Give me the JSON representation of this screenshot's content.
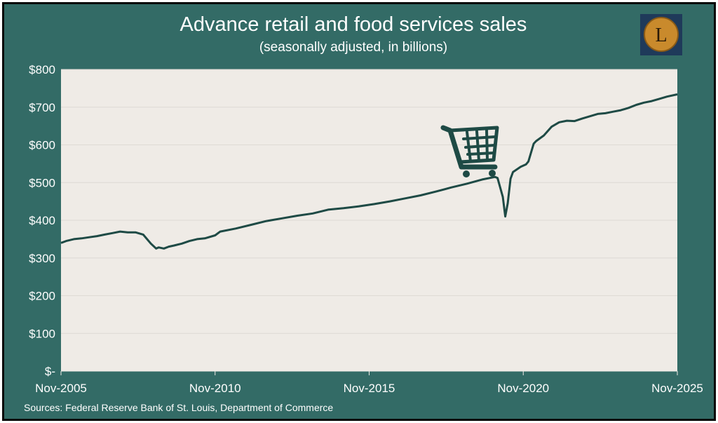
{
  "colors": {
    "background": "#336b66",
    "plot_background": "#efebe6",
    "line": "#1e4a45",
    "text": "#ffffff",
    "logo_circle": "#c98a2c",
    "logo_box": "#1f3a5a"
  },
  "logo": {
    "letter": "L",
    "icon": "lettered-coin-logo"
  },
  "source": "Sources: Federal Reserve Bank of St. Louis, Department of Commerce",
  "chart_data": {
    "type": "line",
    "title": "Advance retail and food services sales",
    "subtitle": "(seasonally adjusted, in billions)",
    "xlabel": "",
    "ylabel": "",
    "ylim": [
      0,
      800
    ],
    "xlim": [
      2005.833,
      2025.833
    ],
    "yticks": [
      {
        "value": 0,
        "label": "$-"
      },
      {
        "value": 100,
        "label": "$100"
      },
      {
        "value": 200,
        "label": "$200"
      },
      {
        "value": 300,
        "label": "$300"
      },
      {
        "value": 400,
        "label": "$400"
      },
      {
        "value": 500,
        "label": "$500"
      },
      {
        "value": 600,
        "label": "$600"
      },
      {
        "value": 700,
        "label": "$700"
      },
      {
        "value": 800,
        "label": "$800"
      }
    ],
    "xticks": [
      {
        "value": 2005.833,
        "label": "Nov-2005"
      },
      {
        "value": 2010.833,
        "label": "Nov-2010"
      },
      {
        "value": 2015.833,
        "label": "Nov-2015"
      },
      {
        "value": 2020.833,
        "label": "Nov-2020"
      },
      {
        "value": 2025.833,
        "label": "Nov-2025"
      }
    ],
    "grid": true,
    "annotation_icon": "shopping-cart-icon",
    "series": [
      {
        "color": "#1e4a45",
        "x": [
          2005.833,
          2006.0,
          2006.25,
          2006.5,
          2006.75,
          2007.0,
          2007.25,
          2007.5,
          2007.75,
          2008.0,
          2008.25,
          2008.5,
          2008.75,
          2008.92,
          2009.0,
          2009.17,
          2009.33,
          2009.5,
          2009.75,
          2010.0,
          2010.25,
          2010.5,
          2010.833,
          2011.0,
          2011.5,
          2012.0,
          2012.5,
          2013.0,
          2013.5,
          2014.0,
          2014.5,
          2015.0,
          2015.5,
          2016.0,
          2016.5,
          2017.0,
          2017.5,
          2018.0,
          2018.5,
          2019.0,
          2019.5,
          2019.92,
          2020.0,
          2020.17,
          2020.25,
          2020.33,
          2020.42,
          2020.5,
          2020.75,
          2020.92,
          2021.0,
          2021.17,
          2021.25,
          2021.5,
          2021.75,
          2022.0,
          2022.25,
          2022.5,
          2022.75,
          2023.0,
          2023.25,
          2023.5,
          2023.75,
          2024.0,
          2024.25,
          2024.5,
          2024.75,
          2025.0,
          2025.25,
          2025.5,
          2025.833
        ],
        "y": [
          340,
          345,
          350,
          352,
          355,
          358,
          362,
          366,
          370,
          368,
          368,
          362,
          338,
          325,
          328,
          325,
          330,
          333,
          338,
          345,
          350,
          352,
          360,
          370,
          378,
          388,
          398,
          405,
          412,
          418,
          428,
          432,
          437,
          443,
          450,
          458,
          466,
          476,
          487,
          497,
          508,
          515,
          512,
          462,
          410,
          445,
          510,
          528,
          542,
          548,
          556,
          603,
          610,
          625,
          648,
          660,
          664,
          663,
          670,
          676,
          682,
          684,
          688,
          692,
          698,
          706,
          712,
          716,
          722,
          728,
          734
        ]
      }
    ]
  }
}
